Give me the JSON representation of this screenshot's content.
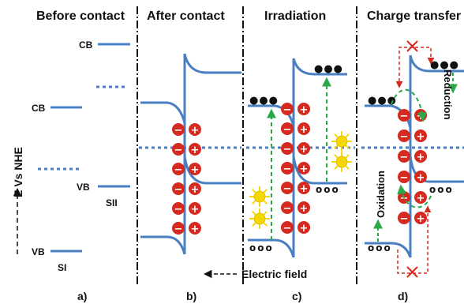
{
  "titles": {
    "a": "Before contact",
    "b": "After contact",
    "c": "Irradiation",
    "d": "Charge transfer"
  },
  "axis_label": "E Vs NHE",
  "band_labels": {
    "cb_sii": "CB",
    "cb_si": "CB",
    "vb_sii": "VB",
    "sii": "SII",
    "vb_si": "VB",
    "si": "SI"
  },
  "charges": {
    "minus": "−",
    "plus": "+"
  },
  "electron": "●●●",
  "hole": "ooo",
  "electric_field_label": "Electric field",
  "oxidation_label": "Oxidation",
  "reduction_label": "Reduction",
  "panel_labels": {
    "a": "a)",
    "b": "b)",
    "c": "c)",
    "d": "d)"
  },
  "colors": {
    "band": "#4a7fc1",
    "fermi": "#4a7fc1",
    "charge_red": "#d42a20",
    "arrow_green": "#2aa84a",
    "arrow_red": "#d42a20",
    "sun": "#f5d800"
  }
}
